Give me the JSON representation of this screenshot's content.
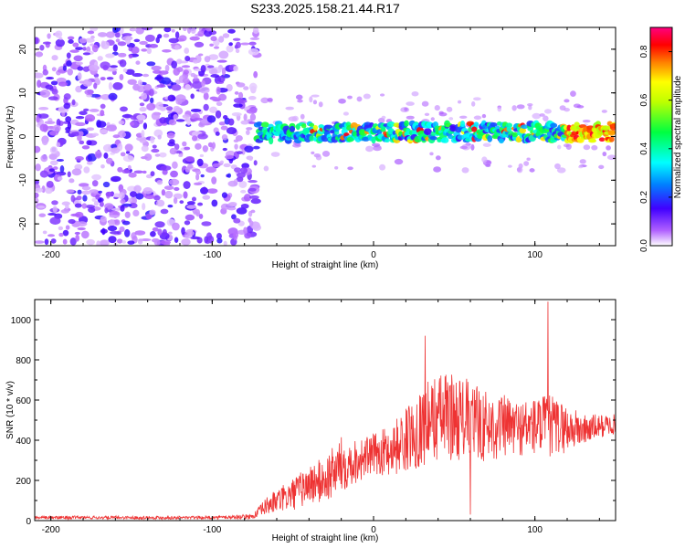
{
  "chart_data": [
    {
      "type": "heatmap",
      "title": "S233.2025.158.21.44.R17",
      "xlabel": "Height of straight line (km)",
      "ylabel": "Frequency (Hz)",
      "xlim": [
        -210,
        150
      ],
      "ylim": [
        -25,
        25
      ],
      "xticks": [
        -200,
        -100,
        0,
        100
      ],
      "yticks": [
        -20,
        -10,
        0,
        10,
        20
      ],
      "colorbar": {
        "label": "Normalized spectral amplitude",
        "range": [
          0.0,
          0.9
        ],
        "ticks": [
          0.0,
          0.2,
          0.4,
          0.6,
          0.8
        ],
        "colormap": "rainbow",
        "colors": [
          "#ffffff",
          "#8000ff",
          "#0000ff",
          "#00ffff",
          "#00ff00",
          "#ffff00",
          "#ff8000",
          "#ff0000",
          "#ff0080"
        ]
      },
      "features": {
        "noise_region_x": [
          -210,
          -72
        ],
        "signal_band_x": [
          -72,
          150
        ],
        "signal_center_hz": 1,
        "signal_max_x_range": [
          -40,
          150
        ]
      }
    },
    {
      "type": "line",
      "xlabel": "Height of straight line (km)",
      "ylabel": "SNR (10 * v/v)",
      "xlim": [
        -210,
        150
      ],
      "ylim": [
        0,
        1100
      ],
      "xticks": [
        -200,
        -100,
        0,
        100
      ],
      "yticks": [
        0,
        200,
        400,
        600,
        800,
        1000
      ],
      "series": [
        {
          "color": "#ee3333",
          "envelope": {
            "x": [
              -210,
              -150,
              -100,
              -75,
              -65,
              -50,
              -40,
              -30,
              -20,
              -10,
              0,
              10,
              20,
              30,
              40,
              50,
              60,
              70,
              80,
              90,
              100,
              110,
              120,
              130,
              140,
              150
            ],
            "mean": [
              15,
              15,
              15,
              20,
              80,
              130,
              180,
              200,
              280,
              300,
              330,
              350,
              400,
              470,
              520,
              520,
              500,
              470,
              470,
              460,
              470,
              470,
              460,
              450,
              470,
              480
            ],
            "spread": [
              8,
              8,
              8,
              12,
              50,
              80,
              100,
              120,
              140,
              110,
              100,
              130,
              160,
              200,
              220,
              220,
              200,
              180,
              160,
              140,
              150,
              160,
              120,
              80,
              60,
              50
            ]
          },
          "peaks": [
            {
              "x": 108,
              "y": 1090
            },
            {
              "x": 60,
              "y": 30
            },
            {
              "x": 32,
              "y": 920
            }
          ]
        }
      ]
    }
  ]
}
